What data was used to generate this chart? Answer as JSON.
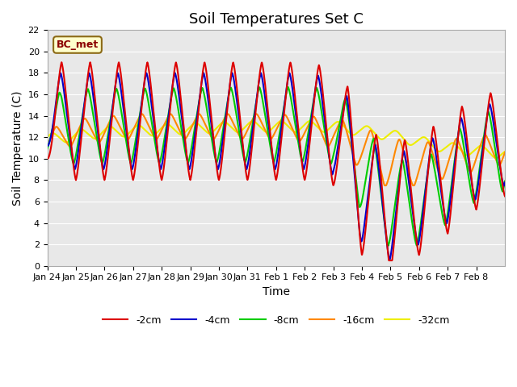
{
  "title": "Soil Temperatures Set C",
  "xlabel": "Time",
  "ylabel": "Soil Temperature (C)",
  "ylim": [
    0,
    22
  ],
  "annotation": "BC_met",
  "legend_labels": [
    "-2cm",
    "-4cm",
    "-8cm",
    "-16cm",
    "-32cm"
  ],
  "line_colors": [
    "#dd0000",
    "#0000cc",
    "#00cc00",
    "#ff8800",
    "#eeee00"
  ],
  "line_width": 1.5,
  "background_color": "#e8e8e8",
  "fig_color": "#ffffff",
  "grid_color": "#ffffff",
  "xtick_labels": [
    "Jan 24",
    "Jan 25",
    "Jan 26",
    "Jan 27",
    "Jan 28",
    "Jan 29",
    "Jan 30",
    "Jan 31",
    "Feb 1",
    "Feb 2",
    "Feb 3",
    "Feb 4",
    "Feb 5",
    "Feb 6",
    "Feb 7",
    "Feb 8"
  ],
  "yticks": [
    0,
    2,
    4,
    6,
    8,
    10,
    12,
    14,
    16,
    18,
    20,
    22
  ],
  "title_fontsize": 13,
  "axis_fontsize": 10,
  "tick_fontsize": 8
}
